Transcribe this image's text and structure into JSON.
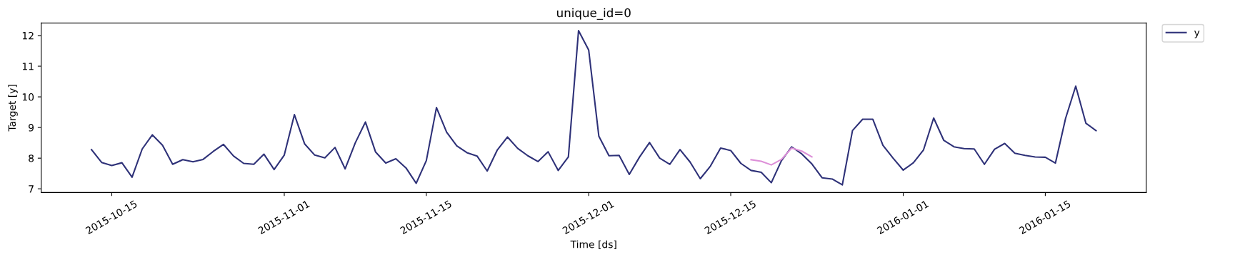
{
  "chart_data": {
    "type": "line",
    "title": "unique_id=0",
    "xlabel": "Time [ds]",
    "ylabel": "Target [y]",
    "xlim": [
      "2015-10-08T01:12",
      "2016-01-24T22:48"
    ],
    "ylim": [
      6.88,
      12.41
    ],
    "yticks": [
      7,
      8,
      9,
      10,
      11,
      12
    ],
    "xticks": [
      {
        "value": "2015-10-15",
        "label": "2015-10-15"
      },
      {
        "value": "2015-11-01",
        "label": "2015-11-01"
      },
      {
        "value": "2015-11-15",
        "label": "2015-11-15"
      },
      {
        "value": "2015-12-01",
        "label": "2015-12-01"
      },
      {
        "value": "2015-12-15",
        "label": "2015-12-15"
      },
      {
        "value": "2016-01-01",
        "label": "2016-01-01"
      },
      {
        "value": "2016-01-15",
        "label": "2016-01-15"
      }
    ],
    "grid": false,
    "legend": "top right",
    "marker": "none",
    "line_style": "solid",
    "series": [
      {
        "name": "y",
        "color": "#2e3178",
        "x": [
          "2015-10-13",
          "2015-10-14",
          "2015-10-15",
          "2015-10-16",
          "2015-10-17",
          "2015-10-18",
          "2015-10-19",
          "2015-10-20",
          "2015-10-21",
          "2015-10-22",
          "2015-10-23",
          "2015-10-24",
          "2015-10-25",
          "2015-10-26",
          "2015-10-27",
          "2015-10-28",
          "2015-10-29",
          "2015-10-30",
          "2015-10-31",
          "2015-11-01",
          "2015-11-02",
          "2015-11-03",
          "2015-11-04",
          "2015-11-05",
          "2015-11-06",
          "2015-11-07",
          "2015-11-08",
          "2015-11-09",
          "2015-11-10",
          "2015-11-11",
          "2015-11-12",
          "2015-11-13",
          "2015-11-14",
          "2015-11-15",
          "2015-11-16",
          "2015-11-17",
          "2015-11-18",
          "2015-11-19",
          "2015-11-20",
          "2015-11-21",
          "2015-11-22",
          "2015-11-23",
          "2015-11-24",
          "2015-11-25",
          "2015-11-26",
          "2015-11-27",
          "2015-11-28",
          "2015-11-29",
          "2015-11-30",
          "2015-12-01",
          "2015-12-02",
          "2015-12-03",
          "2015-12-04",
          "2015-12-05",
          "2015-12-06",
          "2015-12-07",
          "2015-12-08",
          "2015-12-09",
          "2015-12-10",
          "2015-12-11",
          "2015-12-12",
          "2015-12-13",
          "2015-12-14",
          "2015-12-15",
          "2015-12-16",
          "2015-12-17",
          "2015-12-18",
          "2015-12-19",
          "2015-12-20",
          "2015-12-21",
          "2015-12-22",
          "2015-12-23",
          "2015-12-24",
          "2015-12-25",
          "2015-12-26",
          "2015-12-27",
          "2015-12-28",
          "2015-12-29",
          "2015-12-30",
          "2015-12-31",
          "2016-01-01",
          "2016-01-02",
          "2016-01-03",
          "2016-01-04",
          "2016-01-05",
          "2016-01-06",
          "2016-01-07",
          "2016-01-08",
          "2016-01-09",
          "2016-01-10",
          "2016-01-11",
          "2016-01-12",
          "2016-01-13",
          "2016-01-14",
          "2016-01-15",
          "2016-01-16",
          "2016-01-17",
          "2016-01-18",
          "2016-01-19",
          "2016-01-20"
        ],
        "values": [
          8.28,
          7.86,
          7.76,
          7.85,
          7.38,
          8.3,
          8.76,
          8.42,
          7.8,
          7.95,
          7.88,
          7.96,
          8.22,
          8.45,
          8.07,
          7.83,
          7.8,
          8.13,
          7.63,
          8.1,
          9.42,
          8.47,
          8.1,
          8.01,
          8.35,
          7.65,
          8.5,
          9.18,
          8.2,
          7.84,
          7.98,
          7.68,
          7.18,
          7.92,
          9.65,
          8.85,
          8.4,
          8.18,
          8.07,
          7.58,
          8.27,
          8.69,
          8.32,
          8.08,
          7.89,
          8.21,
          7.6,
          8.04,
          12.16,
          11.53,
          8.72,
          8.08,
          8.09,
          7.47,
          8.03,
          8.51,
          8.0,
          7.8,
          8.28,
          7.87,
          7.33,
          7.74,
          8.33,
          8.25,
          7.83,
          7.6,
          7.54,
          7.2,
          7.92,
          8.37,
          8.14,
          7.81,
          7.36,
          7.32,
          7.13,
          8.9,
          9.27,
          9.27,
          8.42,
          8.0,
          7.61,
          7.85,
          8.27,
          9.31,
          8.58,
          8.37,
          8.31,
          8.3,
          7.8,
          8.29,
          8.48,
          8.16,
          8.09,
          8.04,
          8.03,
          7.84,
          9.3,
          10.35,
          9.14,
          8.9
        ]
      },
      {
        "color": "#dd8fd8",
        "x": [
          "2015-12-17",
          "2015-12-18",
          "2015-12-19",
          "2015-12-20",
          "2015-12-21",
          "2015-12-22",
          "2015-12-23"
        ],
        "values": [
          7.95,
          7.9,
          7.78,
          7.96,
          8.33,
          8.23,
          8.04
        ]
      }
    ]
  }
}
